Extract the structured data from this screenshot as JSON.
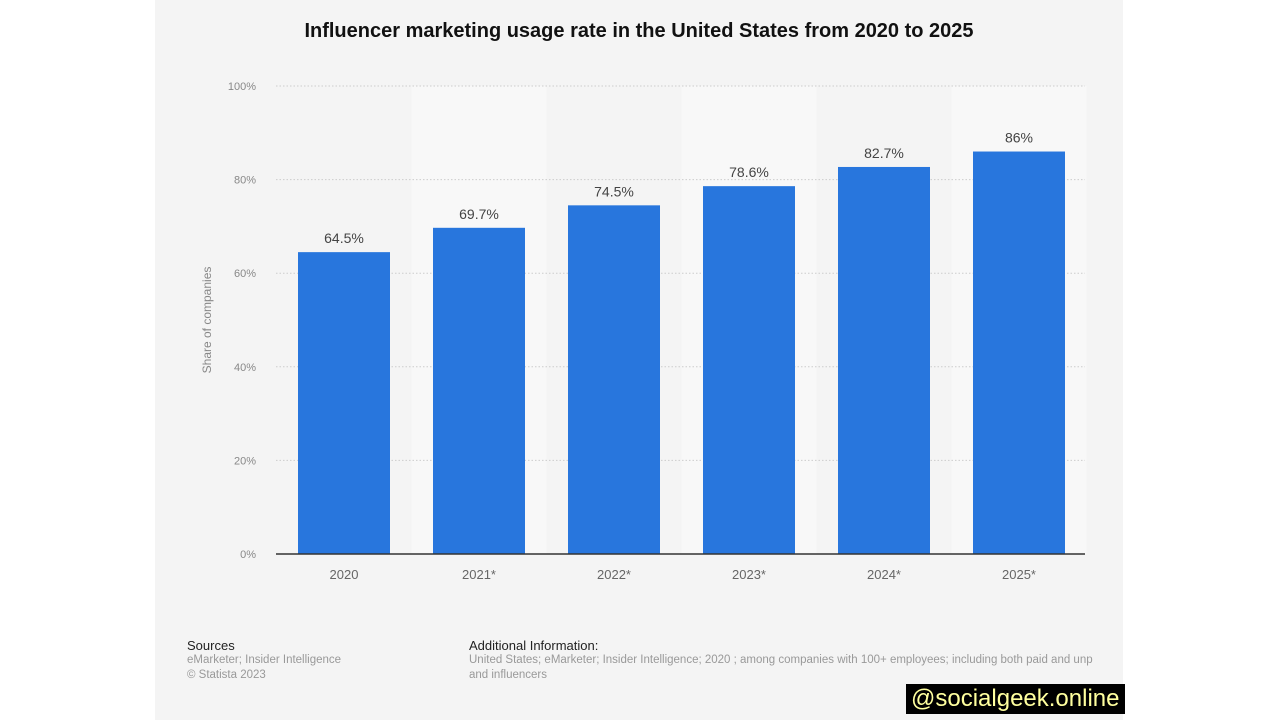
{
  "chart_data": {
    "type": "bar",
    "title": "Influencer marketing usage rate in the United States from 2020 to 2025",
    "ylabel": "Share of companies",
    "xlabel": "",
    "categories": [
      "2020",
      "2021*",
      "2022*",
      "2023*",
      "2024*",
      "2025*"
    ],
    "values": [
      64.5,
      69.7,
      74.5,
      78.6,
      82.7,
      86
    ],
    "data_labels": [
      "64.5%",
      "69.7%",
      "74.5%",
      "78.6%",
      "82.7%",
      "86%"
    ],
    "ylim": [
      0,
      100
    ],
    "yticks": [
      "0%",
      "20%",
      "40%",
      "60%",
      "80%",
      "100%"
    ],
    "grid": true,
    "bar_color": "#2876dd"
  },
  "footer": {
    "sources_heading": "Sources",
    "sources": "eMarketer; Insider Intelligence",
    "copyright": "© Statista 2023",
    "additional_heading": "Additional Information:",
    "additional_line1": "United States; eMarketer; Insider Intelligence; 2020 ; among companies with 100+ employees; including both paid and unp",
    "additional_line2": "and influencers"
  },
  "watermark": "@socialgeek.online"
}
